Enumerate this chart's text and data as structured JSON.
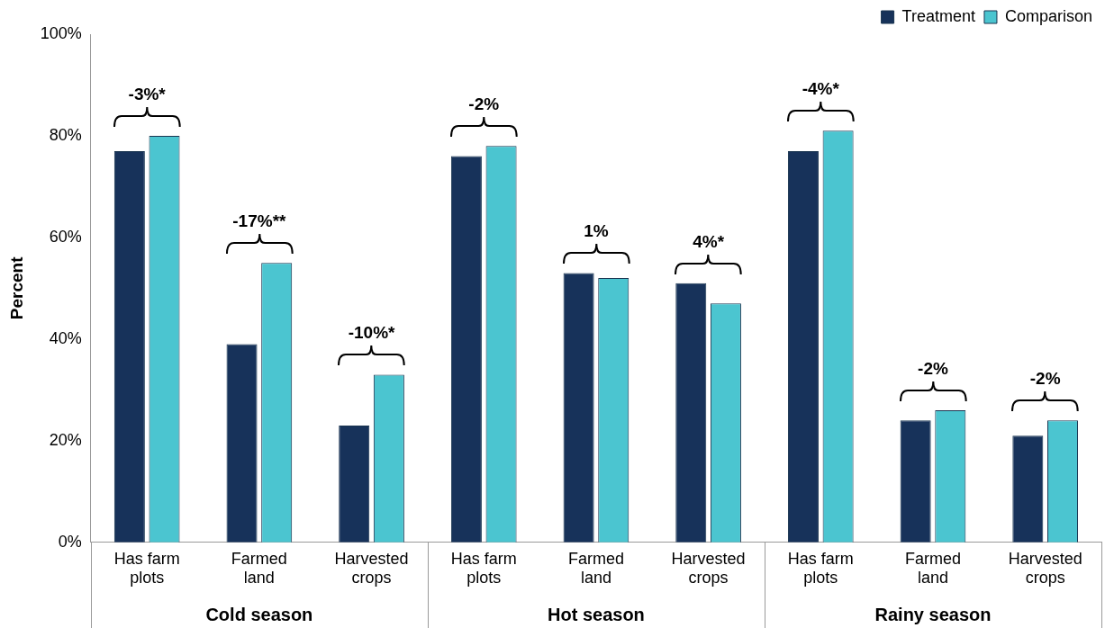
{
  "chart_data": {
    "type": "bar",
    "ylabel": "Percent",
    "categories": [
      "Has farm plots",
      "Farmed land",
      "Harvested crops",
      "Has farm plots",
      "Farmed land",
      "Harvested crops",
      "Has farm plots",
      "Farmed land",
      "Harvested crops"
    ],
    "series": [
      {
        "name": "Treatment",
        "color": "#17325a",
        "values": [
          77,
          39,
          23,
          76,
          53,
          51,
          77,
          24,
          21
        ]
      },
      {
        "name": "Comparison",
        "color": "#4bc5d0",
        "values": [
          80,
          55,
          33,
          78,
          52,
          47,
          81,
          26,
          24
        ]
      }
    ],
    "ylim": [
      0,
      100
    ],
    "yticks": [
      {
        "value": 0,
        "label": "0%"
      },
      {
        "value": 20,
        "label": "20%"
      },
      {
        "value": 40,
        "label": "40%"
      },
      {
        "value": 60,
        "label": "60%"
      },
      {
        "value": 80,
        "label": "80%"
      },
      {
        "value": 100,
        "label": "100%"
      }
    ],
    "annotations": [
      "-3%*",
      "-17%**",
      "-10%*",
      "-2%",
      "1%",
      "4%*",
      "-4%*",
      "-2%",
      "-2%",
      "Cold season",
      "Hot season",
      "Rainy season"
    ],
    "grid": false,
    "legend": "top right"
  }
}
